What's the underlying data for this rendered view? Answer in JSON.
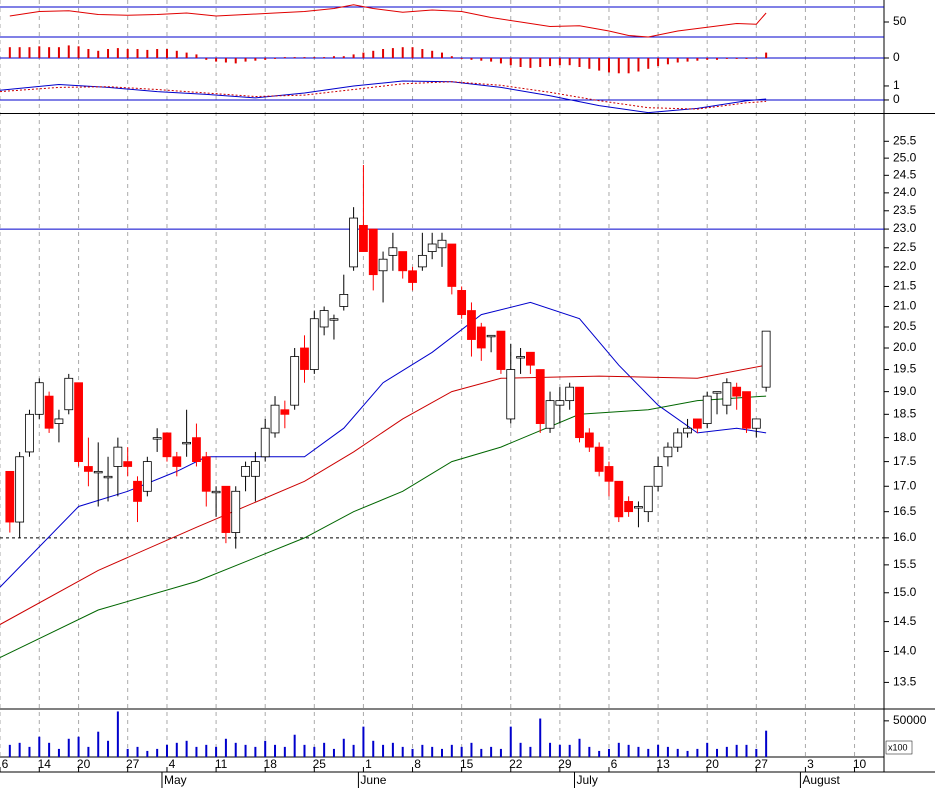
{
  "chart_data": [
    {
      "type": "line",
      "xlim": [
        -1,
        89
      ],
      "ylim": [
        26,
        79.3
      ],
      "yticks": [
        50
      ],
      "hlines": [
        {
          "value": 70,
          "color": "#0000cc"
        },
        {
          "value": 30,
          "color": "#0000cc"
        }
      ],
      "series": [
        {
          "color": "#e00000",
          "x": [
            0,
            3,
            6,
            9,
            12,
            15,
            18,
            21,
            24,
            27,
            30,
            33,
            35,
            37,
            40,
            43,
            46,
            49,
            52,
            55,
            58,
            61,
            63,
            65,
            68,
            71,
            74,
            76,
            77
          ],
          "values": [
            58,
            64,
            65,
            60,
            59,
            60,
            62,
            58,
            60,
            62,
            64,
            68,
            73,
            68,
            63,
            66,
            64,
            56,
            50,
            44,
            45,
            38,
            32,
            30,
            38,
            43,
            48,
            47,
            62
          ]
        }
      ]
    },
    {
      "type": "bar",
      "xlim": [
        -1,
        89
      ],
      "ylim": [
        -1,
        1
      ],
      "yticks": [
        0
      ],
      "color": "#e00000",
      "hlines": [
        {
          "value": 0,
          "color": "#0000cc"
        }
      ],
      "x": [
        0,
        1,
        2,
        3,
        4,
        5,
        6,
        7,
        8,
        9,
        10,
        11,
        12,
        13,
        14,
        15,
        16,
        17,
        18,
        19,
        20,
        21,
        22,
        23,
        24,
        25,
        26,
        27,
        28,
        29,
        30,
        31,
        32,
        33,
        34,
        35,
        36,
        37,
        38,
        39,
        40,
        41,
        42,
        43,
        44,
        45,
        46,
        47,
        48,
        49,
        50,
        51,
        52,
        53,
        54,
        55,
        56,
        57,
        58,
        59,
        60,
        61,
        62,
        63,
        64,
        65,
        66,
        67,
        68,
        69,
        70,
        71,
        72,
        73,
        74,
        75,
        76,
        77
      ],
      "values": [
        0.6,
        0.6,
        0.6,
        0.65,
        0.6,
        0.6,
        0.7,
        0.65,
        0.5,
        0.4,
        0.5,
        0.55,
        0.5,
        0.5,
        0.45,
        0.5,
        0.5,
        0.4,
        0.3,
        0.2,
        -0.1,
        -0.2,
        -0.25,
        -0.3,
        -0.2,
        -0.15,
        -0.1,
        -0.05,
        0.05,
        0.05,
        0.05,
        0.05,
        0.05,
        0.1,
        0.1,
        0.2,
        0.3,
        0.4,
        0.5,
        0.55,
        0.6,
        0.6,
        0.5,
        0.4,
        0.3,
        0.1,
        -0.05,
        -0.1,
        -0.15,
        -0.2,
        -0.3,
        -0.4,
        -0.5,
        -0.55,
        -0.5,
        -0.45,
        -0.4,
        -0.4,
        -0.5,
        -0.6,
        -0.7,
        -0.8,
        -0.85,
        -0.85,
        -0.75,
        -0.6,
        -0.45,
        -0.35,
        -0.25,
        -0.2,
        -0.15,
        -0.1,
        -0.1,
        -0.05,
        -0.05,
        -0.05,
        0.0,
        0.3
      ]
    },
    {
      "type": "line",
      "xlim": [
        -1,
        89
      ],
      "ylim": [
        -0.93,
        1.71
      ],
      "yticks": [
        0,
        1
      ],
      "hlines": [
        {
          "value": 0,
          "color": "#0000cc"
        }
      ],
      "series": [
        {
          "color": "#0000cc",
          "x": [
            -1,
            2,
            5,
            10,
            15,
            20,
            25,
            30,
            35,
            40,
            45,
            50,
            55,
            60,
            65,
            70,
            75,
            77
          ],
          "values": [
            0.7,
            0.9,
            1.1,
            0.9,
            0.6,
            0.4,
            0.15,
            0.5,
            1.0,
            1.35,
            1.3,
            0.9,
            0.3,
            -0.4,
            -0.9,
            -0.6,
            -0.05,
            0.07
          ]
        },
        {
          "color": "#cc0000",
          "dashed": true,
          "x": [
            -1,
            2,
            5,
            10,
            15,
            20,
            25,
            30,
            35,
            40,
            45,
            50,
            55,
            60,
            65,
            70,
            75,
            77
          ],
          "values": [
            0.6,
            0.75,
            0.9,
            0.95,
            0.75,
            0.5,
            0.25,
            0.35,
            0.75,
            1.15,
            1.3,
            1.05,
            0.55,
            -0.05,
            -0.55,
            -0.65,
            -0.2,
            -0.1
          ]
        }
      ]
    },
    {
      "type": "candlestick",
      "log": true,
      "xlim": [
        -1,
        89
      ],
      "ylim": [
        13.1,
        26.3
      ],
      "up_color": "#ffffff",
      "down_color": "#ff0000",
      "yticks": [
        13.5,
        {
          "value": 14,
          "label": "14.0"
        },
        14.5,
        {
          "value": 15,
          "label": "15.0"
        },
        15.5,
        {
          "value": 16,
          "label": "16.0"
        },
        16.5,
        {
          "value": 17,
          "label": "17.0"
        },
        17.5,
        {
          "value": 18,
          "label": "18.0"
        },
        18.5,
        {
          "value": 19,
          "label": "19.0"
        },
        19.5,
        {
          "value": 20,
          "label": "20.0"
        },
        20.5,
        {
          "value": 21,
          "label": "21.0"
        },
        21.5,
        {
          "value": 22,
          "label": "22.0"
        },
        22.5,
        {
          "value": 23,
          "label": "23.0"
        },
        23.5,
        {
          "value": 24,
          "label": "24.0"
        },
        24.5,
        {
          "value": 25,
          "label": "25.0"
        },
        25.5
      ],
      "hlines": [
        {
          "value": 23,
          "color": "#0000cc"
        },
        {
          "value": 16,
          "color": "#000000",
          "dashed": true
        }
      ],
      "x": [
        0,
        1,
        2,
        3,
        4,
        5,
        6,
        7,
        8,
        9,
        10,
        11,
        12,
        13,
        14,
        15,
        16,
        17,
        18,
        19,
        20,
        21,
        22,
        23,
        24,
        25,
        26,
        27,
        28,
        29,
        30,
        31,
        32,
        33,
        34,
        35,
        36,
        37,
        38,
        39,
        40,
        41,
        42,
        43,
        44,
        45,
        46,
        47,
        48,
        49,
        50,
        51,
        52,
        53,
        54,
        55,
        56,
        57,
        58,
        59,
        60,
        61,
        62,
        63,
        64,
        65,
        66,
        67,
        68,
        69,
        70,
        71,
        72,
        73,
        74,
        75,
        76,
        77
      ],
      "open": [
        17.3,
        16.3,
        17.7,
        18.5,
        18.9,
        18.3,
        18.6,
        19.2,
        17.4,
        17.3,
        17.2,
        17.4,
        17.5,
        17.1,
        16.9,
        18.0,
        18.1,
        17.6,
        17.9,
        18.0,
        17.6,
        16.9,
        17.0,
        16.1,
        17.2,
        17.2,
        17.6,
        18.1,
        18.6,
        18.7,
        20.0,
        19.5,
        20.5,
        20.7,
        21.0,
        22.0,
        23.1,
        23.0,
        21.9,
        22.3,
        22.4,
        21.9,
        22.0,
        22.4,
        22.5,
        22.6,
        21.4,
        20.9,
        20.5,
        20.3,
        20.4,
        18.4,
        19.8,
        19.9,
        19.5,
        18.2,
        18.7,
        18.8,
        19.1,
        18.1,
        17.8,
        17.4,
        17.1,
        16.7,
        16.6,
        16.5,
        17.0,
        17.6,
        17.8,
        18.1,
        18.4,
        18.3,
        19.0,
        18.7,
        19.1,
        19.0,
        18.2,
        19.1
      ],
      "high": [
        17.3,
        17.7,
        18.6,
        19.3,
        19.0,
        18.6,
        19.4,
        19.2,
        18.0,
        17.9,
        17.6,
        18.0,
        17.8,
        17.2,
        17.6,
        18.2,
        18.1,
        17.7,
        18.6,
        18.3,
        17.7,
        17.0,
        17.0,
        17.0,
        17.5,
        17.7,
        18.4,
        18.9,
        18.8,
        20.0,
        20.3,
        20.9,
        21.0,
        20.8,
        21.8,
        23.6,
        24.8,
        23.0,
        22.4,
        22.9,
        22.4,
        22.0,
        22.9,
        22.9,
        22.9,
        22.6,
        21.5,
        21.1,
        20.6,
        20.3,
        20.4,
        20.1,
        20.0,
        19.9,
        19.5,
        19.0,
        19.1,
        19.2,
        19.1,
        18.2,
        17.9,
        17.5,
        17.1,
        16.8,
        16.7,
        17.0,
        17.6,
        17.9,
        18.2,
        18.4,
        18.4,
        19.0,
        19.0,
        19.3,
        19.2,
        19.0,
        18.4,
        20.4
      ],
      "low": [
        16.1,
        16.0,
        17.6,
        18.4,
        18.1,
        17.9,
        18.5,
        17.4,
        17.0,
        16.6,
        16.7,
        16.8,
        17.2,
        16.3,
        16.8,
        17.7,
        17.5,
        17.2,
        17.6,
        17.4,
        16.6,
        16.4,
        15.9,
        15.8,
        16.9,
        16.7,
        17.5,
        18.0,
        18.2,
        18.6,
        19.2,
        19.4,
        20.3,
        20.2,
        20.9,
        21.9,
        22.4,
        21.4,
        21.1,
        21.9,
        21.7,
        21.4,
        21.9,
        22.2,
        22.0,
        21.3,
        20.7,
        19.8,
        19.7,
        19.9,
        19.4,
        18.3,
        19.4,
        19.4,
        18.1,
        18.1,
        18.3,
        18.6,
        17.9,
        17.7,
        17.2,
        16.8,
        16.3,
        16.4,
        16.2,
        16.3,
        16.9,
        17.4,
        17.7,
        18.0,
        18.1,
        18.2,
        18.5,
        18.5,
        18.6,
        18.1,
        18.0,
        19.0
      ],
      "close": [
        16.3,
        17.6,
        18.5,
        19.2,
        18.2,
        18.4,
        19.3,
        17.5,
        17.3,
        17.3,
        17.2,
        17.8,
        17.4,
        16.7,
        17.5,
        18.0,
        17.6,
        17.4,
        17.9,
        17.5,
        16.9,
        16.9,
        16.1,
        16.9,
        17.4,
        17.5,
        18.2,
        18.7,
        18.5,
        19.8,
        19.5,
        20.7,
        20.9,
        20.7,
        21.3,
        23.3,
        22.4,
        21.8,
        22.2,
        22.5,
        21.9,
        21.6,
        22.3,
        22.6,
        22.7,
        21.5,
        20.8,
        20.2,
        20.0,
        20.3,
        19.5,
        19.5,
        19.8,
        19.6,
        18.3,
        18.8,
        18.8,
        19.1,
        18.0,
        17.8,
        17.3,
        17.1,
        16.4,
        16.5,
        16.6,
        17.0,
        17.4,
        17.8,
        18.1,
        18.2,
        18.2,
        18.9,
        19.0,
        19.2,
        18.9,
        18.2,
        18.4,
        20.4
      ],
      "series": [
        {
          "color": "#0000cc",
          "x": [
            -1,
            7,
            12,
            17,
            20,
            24,
            30,
            34,
            38,
            43,
            48,
            53,
            58,
            62,
            66,
            70,
            74,
            77
          ],
          "values": [
            15.1,
            16.6,
            16.9,
            17.3,
            17.6,
            17.6,
            17.6,
            18.2,
            19.2,
            19.9,
            20.8,
            21.1,
            20.7,
            19.6,
            18.7,
            18.1,
            18.2,
            18.1
          ]
        },
        {
          "color": "#cc0000",
          "x": [
            -1,
            9,
            19,
            30,
            35,
            40,
            45,
            50,
            60,
            70,
            77
          ],
          "values": [
            14.45,
            15.4,
            16.2,
            17.1,
            17.7,
            18.4,
            19.0,
            19.3,
            19.35,
            19.3,
            19.6
          ]
        },
        {
          "color": "#006600",
          "x": [
            -1,
            9,
            19,
            30,
            35,
            40,
            45,
            50,
            58,
            65,
            70,
            77
          ],
          "values": [
            13.9,
            14.7,
            15.2,
            16.0,
            16.5,
            16.9,
            17.5,
            17.8,
            18.5,
            18.6,
            18.8,
            18.9
          ]
        }
      ]
    },
    {
      "type": "bar",
      "xlim": [
        -1,
        89
      ],
      "ylim": [
        0,
        65000
      ],
      "yticks": [
        50000
      ],
      "color": "#0000cc",
      "axis_note": "x100",
      "grid": true,
      "xticks": [
        {
          "value": -1,
          "label": "6"
        },
        {
          "value": 3,
          "label": "14"
        },
        {
          "value": 7,
          "label": "20"
        },
        {
          "value": 12,
          "label": "27"
        },
        {
          "value": 16,
          "label": "4"
        },
        {
          "value": 21,
          "label": "11"
        },
        {
          "value": 26,
          "label": "18"
        },
        {
          "value": 31,
          "label": "25"
        },
        {
          "value": 36,
          "label": "1"
        },
        {
          "value": 41,
          "label": "8"
        },
        {
          "value": 46,
          "label": "15"
        },
        {
          "value": 51,
          "label": "22"
        },
        {
          "value": 56,
          "label": "29"
        },
        {
          "value": 61,
          "label": "6"
        },
        {
          "value": 66,
          "label": "13"
        },
        {
          "value": 71,
          "label": "20"
        },
        {
          "value": 76,
          "label": "27"
        },
        {
          "value": 81,
          "label": "3"
        },
        {
          "value": 86,
          "label": "10"
        }
      ],
      "month_labels": [
        {
          "value": 16,
          "label": "May"
        },
        {
          "value": 36,
          "label": "June"
        },
        {
          "value": 58,
          "label": "July"
        },
        {
          "value": 81,
          "label": "August"
        }
      ],
      "x": [
        0,
        1,
        2,
        3,
        4,
        5,
        6,
        7,
        8,
        9,
        10,
        11,
        12,
        13,
        14,
        15,
        16,
        17,
        18,
        19,
        20,
        21,
        22,
        23,
        24,
        25,
        26,
        27,
        28,
        29,
        30,
        31,
        32,
        33,
        34,
        35,
        36,
        37,
        38,
        39,
        40,
        41,
        42,
        43,
        44,
        45,
        46,
        47,
        48,
        49,
        50,
        51,
        52,
        53,
        54,
        55,
        56,
        57,
        58,
        59,
        60,
        61,
        62,
        63,
        64,
        65,
        66,
        67,
        68,
        69,
        70,
        71,
        72,
        73,
        74,
        75,
        76,
        77
      ],
      "values": [
        16800,
        19600,
        14000,
        28000,
        19600,
        11200,
        25200,
        28000,
        14000,
        35000,
        22400,
        63000,
        11200,
        14000,
        8400,
        11200,
        16800,
        19600,
        22400,
        14000,
        16800,
        14000,
        25200,
        19600,
        16800,
        14000,
        22400,
        16800,
        14000,
        30800,
        16800,
        14000,
        19600,
        11200,
        25200,
        16800,
        42000,
        22400,
        16800,
        19600,
        14000,
        11200,
        16800,
        14000,
        11200,
        16800,
        14000,
        19600,
        11200,
        14000,
        11200,
        42000,
        19600,
        14000,
        53200,
        19600,
        16800,
        16800,
        25200,
        14000,
        8400,
        11200,
        19600,
        16800,
        14000,
        11200,
        16800,
        14000,
        11200,
        8400,
        11200,
        19600,
        11200,
        14000,
        16800,
        16800,
        11200,
        36400
      ]
    }
  ]
}
